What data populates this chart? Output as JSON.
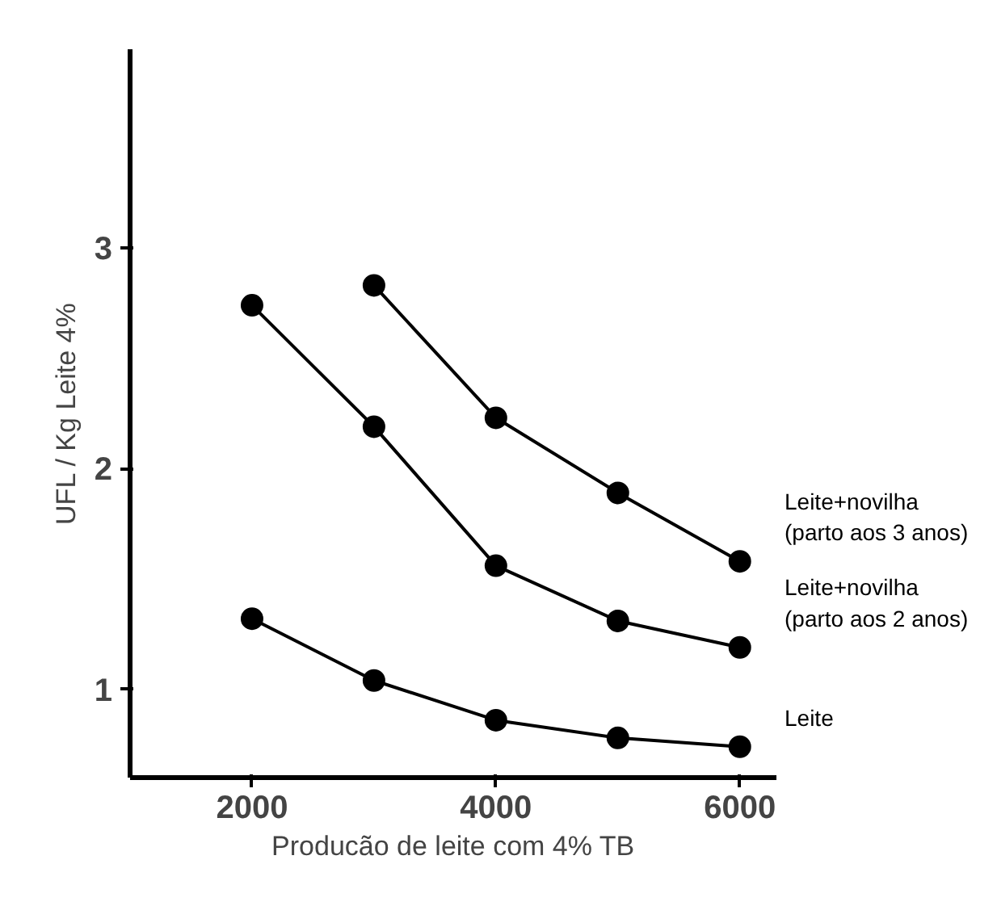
{
  "chart_data": {
    "type": "line",
    "xlabel": "Producão de leite com 4% TB",
    "ylabel": "UFL / Kg Leite 4%",
    "xlim": [
      1000,
      6300
    ],
    "ylim": [
      0.6,
      3.9
    ],
    "xticks": [
      2000,
      4000,
      6000
    ],
    "yticks": [
      1,
      2,
      3
    ],
    "grid": false,
    "legend": false,
    "marker": "circle",
    "line_style": "solid",
    "series": [
      {
        "name": "Leite+novilha\n(parto aos 3 anos)",
        "color": "#000000",
        "x": [
          3000,
          4000,
          5000,
          6000
        ],
        "values": [
          2.83,
          2.23,
          1.89,
          1.58
        ]
      },
      {
        "name": "Leite+novilha\n(parto aos 2 anos)",
        "color": "#000000",
        "x": [
          2000,
          3000,
          4000,
          5000,
          6000
        ],
        "values": [
          2.74,
          2.19,
          1.56,
          1.31,
          1.19
        ]
      },
      {
        "name": "Leite",
        "color": "#000000",
        "x": [
          2000,
          3000,
          4000,
          5000,
          6000
        ],
        "values": [
          1.32,
          1.04,
          0.86,
          0.78,
          0.74
        ]
      }
    ]
  }
}
